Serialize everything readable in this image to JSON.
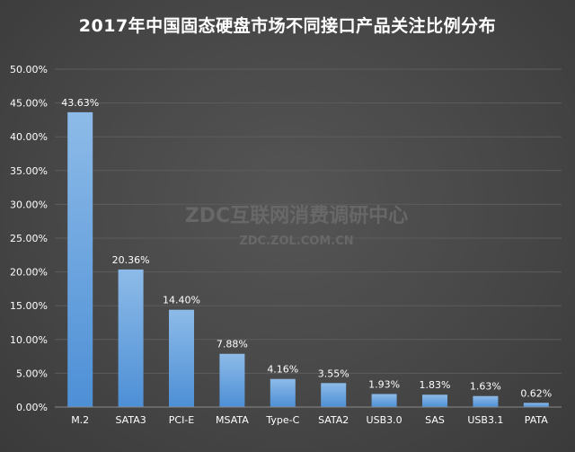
{
  "chart_data": {
    "type": "bar",
    "title": "2017年中国固态硬盘市场不同接口产品关注比例分布",
    "categories": [
      "M.2",
      "SATA3",
      "PCI-E",
      "MSATA",
      "Type-C",
      "SATA2",
      "USB3.0",
      "SAS",
      "USB3.1",
      "PATA"
    ],
    "values": [
      43.63,
      20.36,
      14.4,
      7.88,
      4.16,
      3.55,
      1.93,
      1.83,
      1.63,
      0.62
    ],
    "data_labels": [
      "43.63%",
      "20.36%",
      "14.40%",
      "7.88%",
      "4.16%",
      "3.55%",
      "1.93%",
      "1.83%",
      "1.63%",
      "0.62%"
    ],
    "y_ticks": [
      "0.00%",
      "5.00%",
      "10.00%",
      "15.00%",
      "20.00%",
      "25.00%",
      "30.00%",
      "35.00%",
      "40.00%",
      "45.00%",
      "50.00%"
    ],
    "ylim": [
      0,
      50
    ],
    "ystep": 5,
    "xlabel": "",
    "ylabel": "",
    "grid": true,
    "legend": "none",
    "colors": {
      "bar_top": "#8dbbe8",
      "bar_bottom": "#4d8fd6",
      "grid": "#5c5c5c",
      "axis": "#8a8a8a",
      "text": "#ffffff"
    }
  },
  "watermark": {
    "main": "ZDC互联网消费调研中心",
    "sub": "ZDC.ZOL.COM.CN"
  }
}
